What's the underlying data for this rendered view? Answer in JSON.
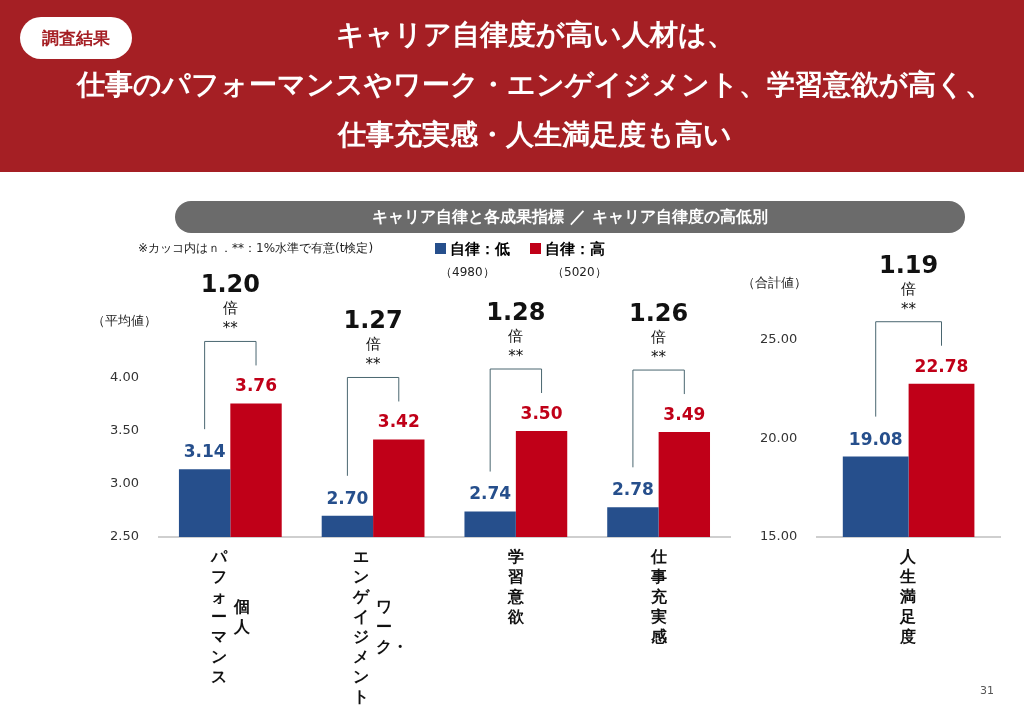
{
  "chart_data": [
    {
      "type": "bar",
      "title": "キャリア自律度が高い人材は、仕事のパフォーマンスやワーク・エンゲイジメント、学習意欲が高く、仕事充実感・人生満足度も高い",
      "subtitle": "キャリア自律と各成果指標 ／ キャリア自律度の高低別",
      "ylabel": "（平均値）",
      "categories": [
        "個人パフォーマンス",
        "ワーク・エンゲイジメント",
        "学習意欲",
        "仕事充実感"
      ],
      "series": [
        {
          "name": "自律：低",
          "color": "#264f8c",
          "values": [
            3.14,
            2.7,
            2.74,
            2.78
          ],
          "value_labels": [
            "3.14",
            "2.70",
            "2.74",
            "2.78"
          ]
        },
        {
          "name": "自律：高",
          "color": "#c00018",
          "values": [
            3.76,
            3.42,
            3.5,
            3.49
          ],
          "value_labels": [
            "3.76",
            "3.42",
            "3.50",
            "3.49"
          ]
        }
      ],
      "ylim": [
        2.5,
        4.0
      ],
      "yticks": [
        {
          "value": 2.5,
          "label": "2.50"
        },
        {
          "value": 3,
          "label": "3.00"
        },
        {
          "value": 3.5,
          "label": "3.50"
        },
        {
          "value": 4,
          "label": "4.00"
        }
      ],
      "grid": false,
      "legend": "top",
      "annotations": [
        "調査結果",
        "※カッコ内はｎ．**：1%水準で有意(t検定)",
        "31",
        "（4980）",
        "（5020）",
        "1.20倍",
        "**",
        "1.27倍",
        "**",
        "1.28倍",
        "**",
        "1.26倍",
        "**"
      ]
    },
    {
      "type": "bar",
      "ylabel": "（合計値）",
      "categories": [
        "人生満足度"
      ],
      "series": [
        {
          "color": "#264f8c",
          "values": [
            19.08
          ],
          "value_labels": [
            "19.08"
          ]
        },
        {
          "color": "#c00018",
          "values": [
            22.78
          ],
          "value_labels": [
            "22.78"
          ]
        }
      ],
      "ylim": [
        15,
        25
      ],
      "yticks": [
        {
          "value": 15,
          "label": "15.00"
        },
        {
          "value": 20,
          "label": "20.00"
        },
        {
          "value": 25,
          "label": "25.00"
        }
      ],
      "grid": false,
      "legend": false,
      "annotations": [
        "1.19倍",
        "**"
      ]
    }
  ]
}
